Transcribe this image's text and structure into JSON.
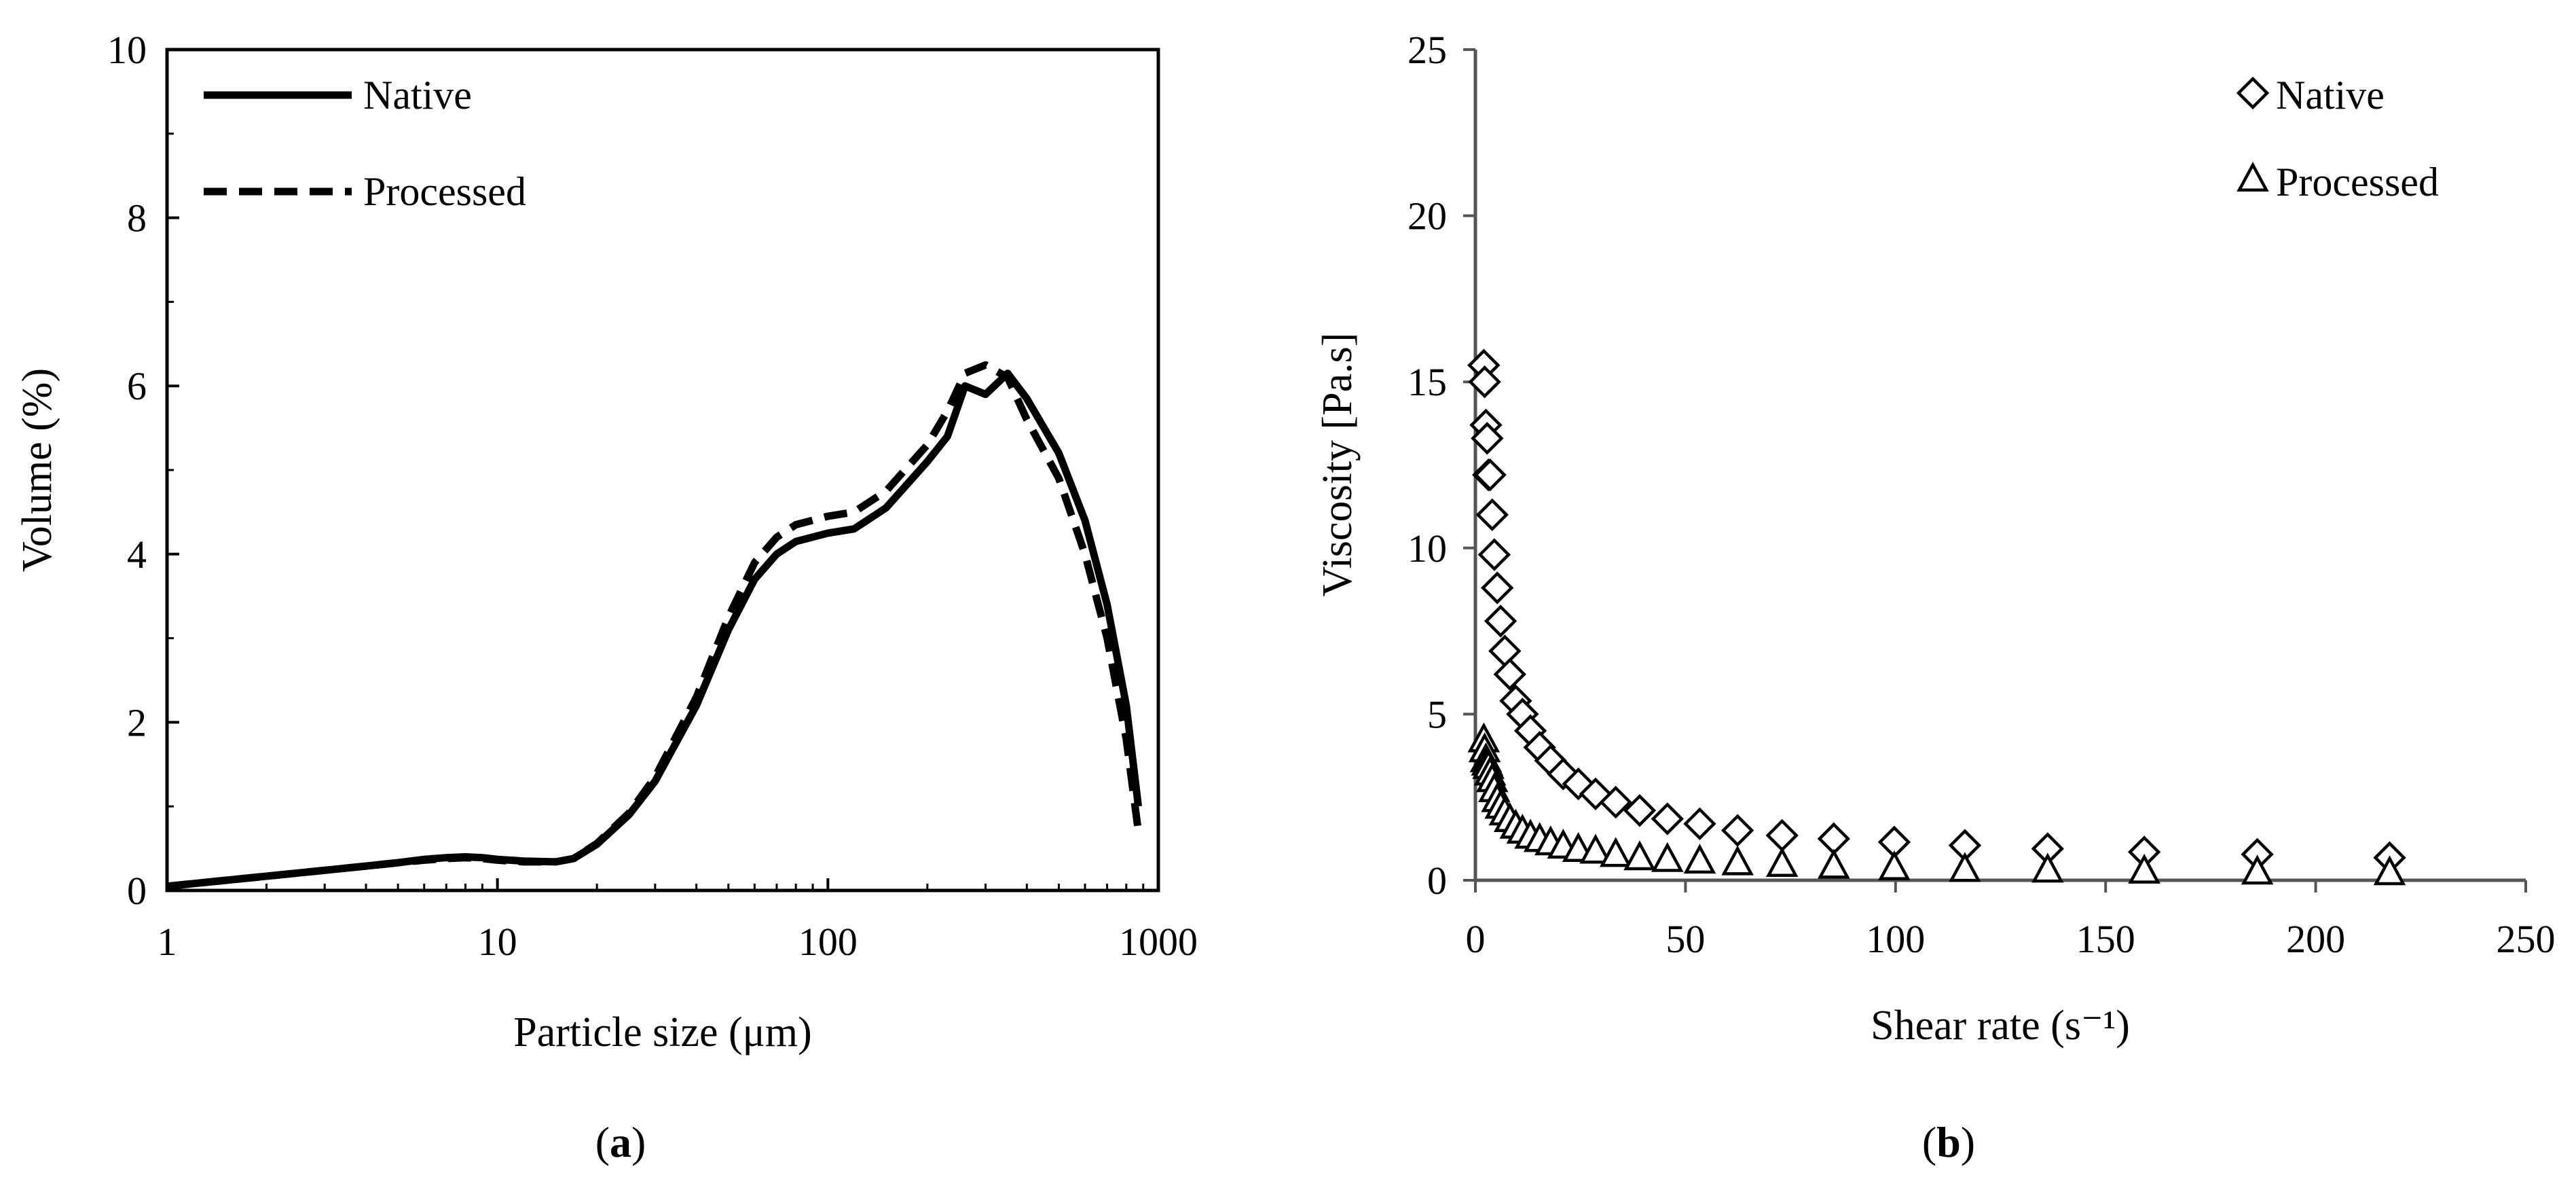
{
  "chart_data": [
    {
      "type": "line",
      "panel_label": "a",
      "xlabel": "Particle size (μm)",
      "ylabel": "Volume (%)",
      "x_scale": "log",
      "xlim": [
        1,
        1000
      ],
      "ylim": [
        0,
        10
      ],
      "x_ticks": [
        1,
        10,
        100,
        1000
      ],
      "x_tick_labels": [
        "1",
        "10",
        "100",
        "1000"
      ],
      "y_ticks": [
        0,
        2,
        4,
        6,
        8,
        10
      ],
      "y_tick_labels": [
        "0",
        "2",
        "4",
        "6",
        "8",
        "10"
      ],
      "legend_position": "top-left",
      "series": [
        {
          "name": "Native",
          "style": "solid",
          "x": [
            1,
            1.5,
            2,
            3,
            4,
            5,
            6,
            7,
            8,
            9,
            10,
            12,
            15,
            17,
            20,
            25,
            30,
            40,
            50,
            60,
            70,
            80,
            100,
            120,
            150,
            200,
            230,
            260,
            300,
            350,
            400,
            500,
            600,
            700,
            800,
            870
          ],
          "y": [
            0.05,
            0.12,
            0.17,
            0.24,
            0.29,
            0.33,
            0.37,
            0.39,
            0.4,
            0.39,
            0.37,
            0.35,
            0.34,
            0.38,
            0.55,
            0.9,
            1.3,
            2.2,
            3.1,
            3.7,
            4.0,
            4.15,
            4.25,
            4.3,
            4.55,
            5.1,
            5.4,
            6.0,
            5.9,
            6.15,
            5.85,
            5.2,
            4.4,
            3.4,
            2.2,
            1.0
          ]
        },
        {
          "name": "Processed",
          "style": "dashed",
          "x": [
            1,
            1.5,
            2,
            3,
            4,
            5,
            6,
            7,
            8,
            9,
            10,
            12,
            15,
            17,
            20,
            25,
            30,
            40,
            50,
            60,
            70,
            80,
            100,
            120,
            150,
            200,
            230,
            260,
            300,
            350,
            400,
            500,
            600,
            700,
            800,
            870
          ],
          "y": [
            0.05,
            0.12,
            0.17,
            0.24,
            0.29,
            0.33,
            0.36,
            0.38,
            0.39,
            0.38,
            0.36,
            0.34,
            0.34,
            0.38,
            0.56,
            0.92,
            1.35,
            2.3,
            3.25,
            3.9,
            4.2,
            4.35,
            4.45,
            4.5,
            4.75,
            5.3,
            5.7,
            6.15,
            6.25,
            6.1,
            5.6,
            4.9,
            4.0,
            3.0,
            1.8,
            0.7
          ]
        }
      ]
    },
    {
      "type": "scatter",
      "panel_label": "b",
      "xlabel": "Shear rate (s⁻¹)",
      "ylabel": "Viscosity [Pa.s]",
      "xlim": [
        0,
        250
      ],
      "ylim": [
        0,
        25
      ],
      "x_ticks": [
        0,
        50,
        100,
        150,
        200,
        250
      ],
      "x_tick_labels": [
        "0",
        "50",
        "100",
        "150",
        "200",
        "250"
      ],
      "y_ticks": [
        0,
        5,
        10,
        15,
        20,
        25
      ],
      "y_tick_labels": [
        "0",
        "5",
        "10",
        "15",
        "20",
        "25"
      ],
      "legend_position": "top-right",
      "series": [
        {
          "name": "Native",
          "marker": "diamond",
          "x": [
            2.0,
            2.2,
            2.5,
            2.8,
            3.1,
            3.5,
            4.0,
            4.5,
            5.2,
            6.0,
            7.0,
            8.2,
            9.6,
            11.2,
            13.1,
            15.3,
            17.9,
            20.9,
            24.5,
            28.6,
            33.4,
            39.1,
            45.7,
            53.4,
            62.4,
            73.0,
            85.3,
            99.7,
            116.5,
            136.2,
            159.2,
            186.1,
            217.6
          ],
          "y": [
            15.5,
            15.0,
            13.7,
            13.3,
            12.2,
            12.2,
            11.0,
            9.8,
            8.8,
            7.8,
            6.9,
            6.2,
            5.4,
            5.0,
            4.5,
            4.0,
            3.6,
            3.2,
            2.9,
            2.6,
            2.35,
            2.1,
            1.85,
            1.7,
            1.5,
            1.35,
            1.25,
            1.15,
            1.05,
            0.95,
            0.85,
            0.78,
            0.68
          ]
        },
        {
          "name": "Processed",
          "marker": "triangle",
          "x": [
            2.0,
            2.2,
            2.5,
            2.8,
            3.1,
            3.5,
            4.0,
            4.5,
            5.2,
            6.0,
            7.0,
            8.2,
            9.6,
            11.2,
            13.1,
            15.3,
            17.9,
            20.9,
            24.5,
            28.6,
            33.4,
            39.1,
            45.7,
            53.4,
            62.4,
            73.0,
            85.3,
            99.7,
            116.5,
            136.2,
            159.2,
            186.1,
            217.6
          ],
          "y": [
            4.2,
            3.9,
            3.6,
            3.5,
            3.4,
            3.2,
            3.0,
            2.7,
            2.4,
            2.2,
            2.0,
            1.8,
            1.6,
            1.45,
            1.3,
            1.2,
            1.1,
            1.0,
            0.9,
            0.85,
            0.75,
            0.65,
            0.6,
            0.55,
            0.5,
            0.45,
            0.4,
            0.35,
            0.3,
            0.28,
            0.25,
            0.22,
            0.2
          ]
        }
      ]
    }
  ]
}
